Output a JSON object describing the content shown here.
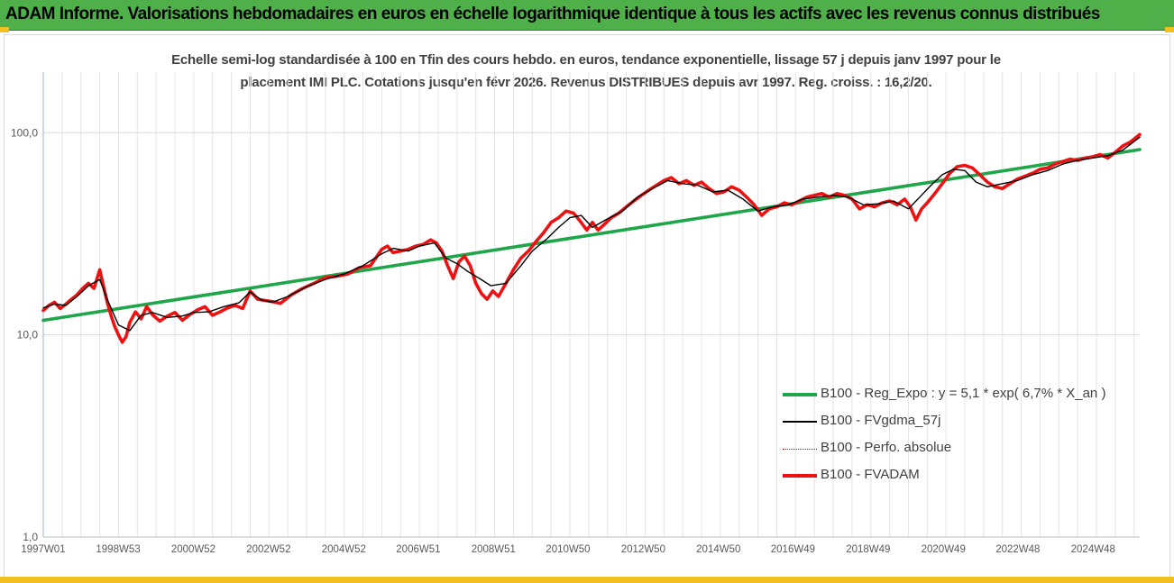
{
  "banner": {
    "title": "ADAM Informe. Valorisations hebdomadaires en euros en échelle logarithmique identique à tous les actifs avec les revenus connus distribués"
  },
  "chart_data": {
    "type": "line",
    "title": "",
    "subtitle_line1": "Echelle semi-log standardisée à 100 en Tfin des cours hebdo. en euros, tendance exponentielle, lissage 57 j depuis janv 1997 pour le",
    "subtitle_line2": "placement IMI PLC. Cotations jusqu'en févr 2026. Revenus DISTRIBUES depuis avr 1997. Reg. croiss. : 16,2/20.",
    "y_scale": "log",
    "ylim": [
      1,
      100
    ],
    "y_ticks": [
      "1,0",
      "10,0",
      "100,0"
    ],
    "xlim": [
      1997.0,
      2026.15
    ],
    "x_ticks": [
      {
        "x": 1997.0,
        "label": "1997W01"
      },
      {
        "x": 1998.99,
        "label": "1998W53"
      },
      {
        "x": 2000.99,
        "label": "2000W52"
      },
      {
        "x": 2002.99,
        "label": "2002W52"
      },
      {
        "x": 2004.99,
        "label": "2004W52"
      },
      {
        "x": 2006.97,
        "label": "2006W51"
      },
      {
        "x": 2008.97,
        "label": "2008W51"
      },
      {
        "x": 2010.95,
        "label": "2010W50"
      },
      {
        "x": 2012.95,
        "label": "2012W50"
      },
      {
        "x": 2014.95,
        "label": "2014W50"
      },
      {
        "x": 2016.93,
        "label": "2016W49"
      },
      {
        "x": 2018.93,
        "label": "2018W49"
      },
      {
        "x": 2020.93,
        "label": "2020W49"
      },
      {
        "x": 2022.91,
        "label": "2022W48"
      },
      {
        "x": 2024.91,
        "label": "2024W48"
      }
    ],
    "grid": "vertical and horizontal",
    "legend_position": "lower-right",
    "series": [
      {
        "name": "B100 - Reg_Expo : y = 5,1 * exp( 6,7% *  X_an )",
        "style": "thick",
        "color": "#1fa64a",
        "x": [
          1997.0,
          2026.15
        ],
        "values": [
          11.8,
          82.5
        ]
      },
      {
        "name": "B100 - FVgdma_57j",
        "style": "thin",
        "color": "#000000",
        "x": [
          1997.0,
          1997.3,
          1997.6,
          1997.9,
          1998.2,
          1998.5,
          1998.7,
          1999.0,
          1999.3,
          1999.6,
          1999.9,
          2000.3,
          2000.7,
          2001.0,
          2001.4,
          2001.8,
          2002.2,
          2002.5,
          2002.8,
          2003.1,
          2003.5,
          2004.0,
          2004.5,
          2005.0,
          2005.5,
          2006.0,
          2006.3,
          2006.7,
          2007.0,
          2007.4,
          2007.7,
          2008.0,
          2008.3,
          2008.6,
          2008.9,
          2009.3,
          2009.7,
          2010.0,
          2010.4,
          2010.7,
          2011.0,
          2011.3,
          2011.6,
          2012.0,
          2012.4,
          2012.8,
          2013.2,
          2013.6,
          2014.0,
          2014.4,
          2014.8,
          2015.2,
          2015.6,
          2016.0,
          2016.4,
          2016.8,
          2017.2,
          2017.6,
          2018.0,
          2018.4,
          2018.8,
          2019.2,
          2019.6,
          2020.0,
          2020.3,
          2020.6,
          2020.9,
          2021.2,
          2021.5,
          2021.8,
          2022.1,
          2022.5,
          2022.9,
          2023.3,
          2023.7,
          2024.1,
          2024.5,
          2024.9,
          2025.3,
          2025.7,
          2026.15
        ],
        "values": [
          13.6,
          14.2,
          14.0,
          15.5,
          17.5,
          18.8,
          15.0,
          11.2,
          10.5,
          12.5,
          12.9,
          12.2,
          12.4,
          12.9,
          13.0,
          13.8,
          14.4,
          16.3,
          14.9,
          14.5,
          15.5,
          17.3,
          18.8,
          20.0,
          22.0,
          25.2,
          26.8,
          26.0,
          27.5,
          28.5,
          24.0,
          22.5,
          20.5,
          19.0,
          17.5,
          18.0,
          22.0,
          26.0,
          30.0,
          34.0,
          38.0,
          39.0,
          34.0,
          37.5,
          41.0,
          48.0,
          53.0,
          58.0,
          56.0,
          55.0,
          51.0,
          52.0,
          47.0,
          41.0,
          43.0,
          44.0,
          47.0,
          48.0,
          49.0,
          48.0,
          44.0,
          44.5,
          46.0,
          42.0,
          48.0,
          55.0,
          62.0,
          66.0,
          65.0,
          57.0,
          54.0,
          56.0,
          58.0,
          62.0,
          65.0,
          70.0,
          73.0,
          75.0,
          77.0,
          82.0,
          95.0
        ]
      },
      {
        "name": "B100 - Perfo. absolue",
        "style": "dotted",
        "color": "#c00000",
        "x": [],
        "values": []
      },
      {
        "name": "B100 - FVADAM",
        "style": "thick",
        "color": "#ee1111",
        "x": [
          1997.0,
          1997.15,
          1997.3,
          1997.45,
          1997.6,
          1997.75,
          1997.9,
          1998.05,
          1998.2,
          1998.35,
          1998.5,
          1998.6,
          1998.7,
          1998.8,
          1998.9,
          1999.0,
          1999.1,
          1999.2,
          1999.3,
          1999.45,
          1999.6,
          1999.75,
          1999.9,
          2000.1,
          2000.3,
          2000.5,
          2000.7,
          2000.9,
          2001.1,
          2001.3,
          2001.5,
          2001.7,
          2001.9,
          2002.1,
          2002.3,
          2002.5,
          2002.7,
          2002.9,
          2003.1,
          2003.3,
          2003.6,
          2003.9,
          2004.2,
          2004.5,
          2004.8,
          2005.1,
          2005.4,
          2005.7,
          2006.0,
          2006.15,
          2006.3,
          2006.5,
          2006.7,
          2006.9,
          2007.1,
          2007.3,
          2007.45,
          2007.6,
          2007.75,
          2007.9,
          2008.05,
          2008.2,
          2008.35,
          2008.5,
          2008.65,
          2008.8,
          2008.95,
          2009.1,
          2009.3,
          2009.5,
          2009.7,
          2009.9,
          2010.1,
          2010.3,
          2010.5,
          2010.7,
          2010.9,
          2011.1,
          2011.3,
          2011.45,
          2011.6,
          2011.75,
          2011.9,
          2012.1,
          2012.3,
          2012.5,
          2012.7,
          2012.9,
          2013.1,
          2013.3,
          2013.5,
          2013.7,
          2013.9,
          2014.1,
          2014.3,
          2014.5,
          2014.7,
          2014.9,
          2015.1,
          2015.3,
          2015.5,
          2015.7,
          2015.9,
          2016.1,
          2016.3,
          2016.5,
          2016.7,
          2016.9,
          2017.1,
          2017.3,
          2017.5,
          2017.7,
          2017.9,
          2018.1,
          2018.3,
          2018.5,
          2018.7,
          2018.9,
          2019.1,
          2019.3,
          2019.5,
          2019.7,
          2019.9,
          2020.05,
          2020.2,
          2020.35,
          2020.5,
          2020.7,
          2020.9,
          2021.1,
          2021.3,
          2021.5,
          2021.7,
          2021.9,
          2022.1,
          2022.3,
          2022.5,
          2022.7,
          2022.9,
          2023.1,
          2023.3,
          2023.5,
          2023.7,
          2023.9,
          2024.1,
          2024.3,
          2024.5,
          2024.7,
          2024.9,
          2025.1,
          2025.3,
          2025.5,
          2025.7,
          2025.9,
          2026.15
        ],
        "values": [
          13.2,
          14.0,
          14.5,
          13.5,
          14.2,
          15.0,
          15.8,
          17.0,
          18.0,
          17.0,
          21.0,
          17.5,
          14.5,
          12.5,
          11.0,
          10.0,
          9.2,
          9.8,
          11.5,
          13.0,
          12.0,
          13.8,
          12.6,
          11.7,
          12.4,
          12.9,
          11.8,
          12.6,
          13.3,
          13.8,
          12.5,
          13.0,
          13.6,
          14.0,
          13.5,
          16.5,
          15.0,
          14.8,
          14.6,
          14.3,
          15.8,
          17.0,
          18.0,
          19.2,
          19.5,
          20.0,
          21.5,
          22.0,
          26.5,
          27.5,
          25.5,
          26.0,
          26.5,
          27.5,
          28.0,
          29.5,
          28.5,
          26.0,
          22.0,
          19.0,
          23.0,
          24.5,
          22.0,
          18.0,
          16.0,
          15.0,
          16.5,
          15.5,
          18.0,
          21.0,
          24.0,
          26.0,
          29.0,
          32.0,
          36.0,
          38.0,
          41.0,
          40.0,
          36.0,
          33.0,
          36.0,
          33.0,
          35.0,
          38.0,
          40.0,
          43.0,
          46.0,
          49.0,
          52.0,
          55.0,
          58.0,
          60.0,
          56.0,
          58.0,
          55.0,
          57.0,
          53.0,
          50.0,
          51.0,
          54.0,
          52.0,
          48.0,
          44.0,
          39.0,
          42.0,
          43.0,
          45.0,
          44.0,
          46.0,
          48.0,
          49.0,
          50.0,
          48.0,
          50.0,
          49.0,
          47.0,
          42.0,
          44.0,
          43.0,
          45.0,
          46.0,
          44.0,
          47.0,
          43.0,
          37.0,
          42.0,
          45.0,
          50.0,
          56.0,
          63.0,
          68.0,
          69.0,
          67.0,
          62.0,
          57.0,
          54.0,
          53.0,
          56.0,
          59.0,
          61.0,
          63.0,
          66.0,
          67.0,
          70.0,
          72.0,
          74.0,
          73.0,
          75.0,
          76.0,
          78.0,
          75.0,
          80.0,
          86.0,
          90.0,
          98.0
        ]
      }
    ]
  }
}
